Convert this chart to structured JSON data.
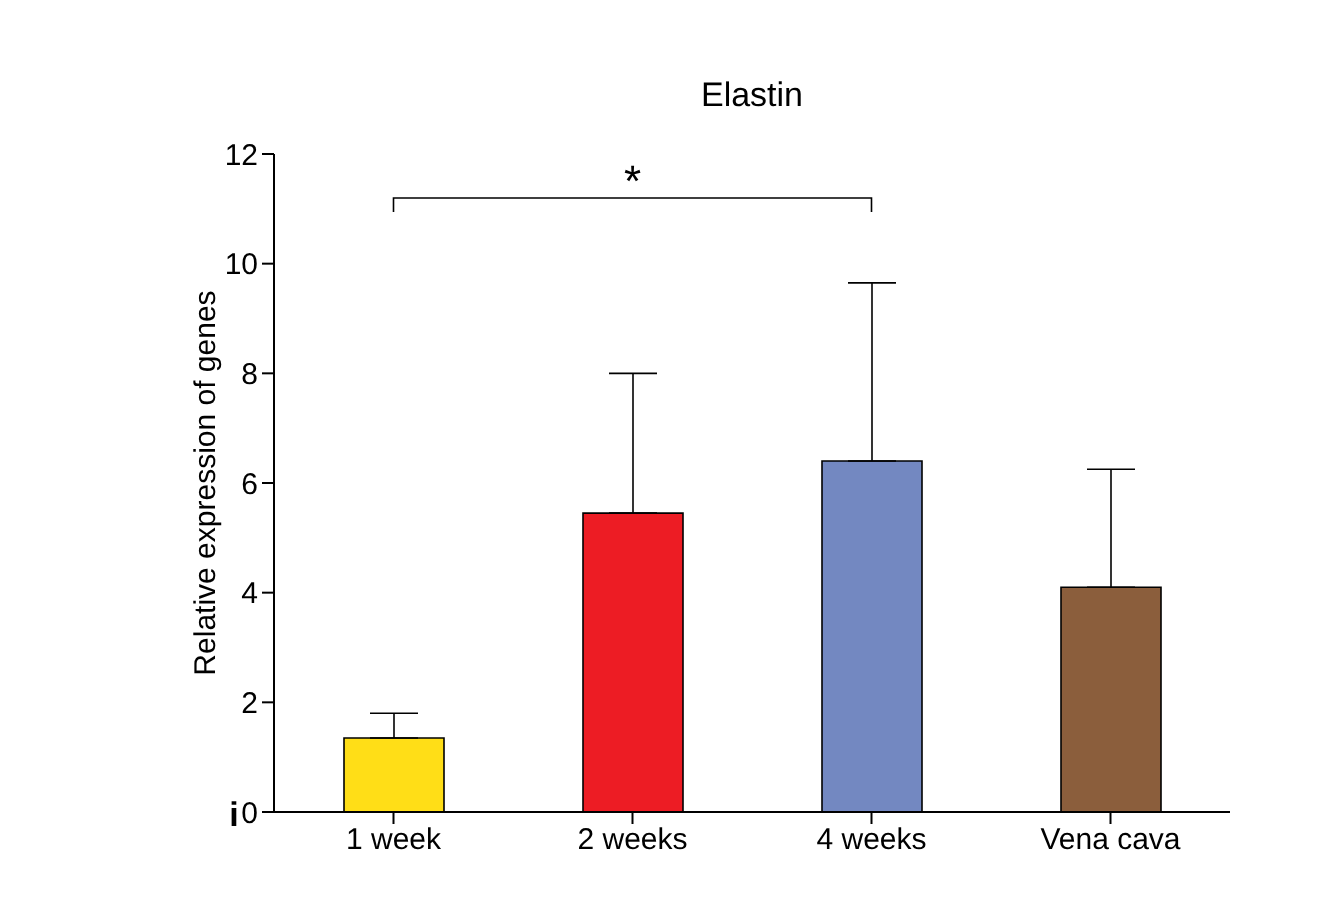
{
  "chart_data": {
    "type": "bar",
    "title": "Elastin",
    "ylabel": "Relative expression of genes",
    "categories": [
      "1 week",
      "2 weeks",
      "4 weeks",
      "Vena cava"
    ],
    "values": [
      1.35,
      5.45,
      6.4,
      4.1
    ],
    "colors": [
      "#ffde17",
      "#ed1c24",
      "#7388c1",
      "#8b5e3c"
    ],
    "errors": [
      [
        1.35,
        1.8
      ],
      [
        5.45,
        8.0
      ],
      [
        6.4,
        9.65
      ],
      [
        4.1,
        6.25
      ]
    ],
    "ylim": [
      0,
      12
    ],
    "yticks": [
      0,
      2,
      4,
      6,
      8,
      10,
      12
    ],
    "annotations": [
      "*",
      "i"
    ]
  }
}
